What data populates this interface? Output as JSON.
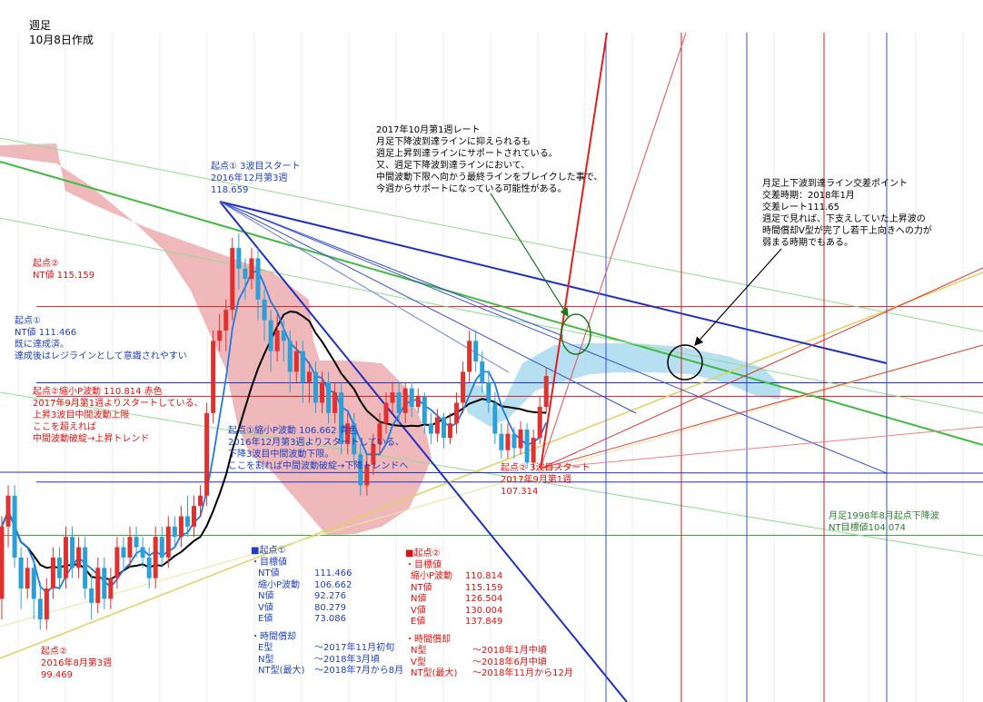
{
  "header": {
    "title": "週足",
    "subtitle": "10月8日作成"
  },
  "notes": {
    "note_2017": [
      "2017年10月第1週レート",
      "月足下降波到達ラインに抑えられるも",
      "週足上昇到達ラインにサポートされている。",
      "又、週足下降波到達ラインにおいて、",
      "中間波動下限へ向かう最終ラインをブレイクした事で、",
      "今週からサポートになっている可能性がある。"
    ],
    "note_cross": [
      "月足上下波到達ライン交差ポイント",
      "交差時期：2018年1月",
      "交差レート111.65",
      "週足で見れば、下支えしていた上昇波の",
      "時間償却V型が完了し若干上向きへの力が",
      "弱まる時期でもある。"
    ],
    "start1_top": [
      "起点①  3波目スタート",
      "2016年12月第3週",
      "118.659"
    ],
    "start2_nt": [
      "起点②",
      "NT値  115.159"
    ],
    "start1_nt": [
      "起点①",
      "NT値  111.466",
      "既に達成済。",
      "達成後はレジラインとして意識されやすい"
    ],
    "start2_small": [
      "起点②縮小P波動  110.814  赤色",
      "2017年9月第1週よりスタートしている、",
      "上昇3波目中間波動上限",
      "ここを超えれば",
      "中間波動破綻→上昇トレンド"
    ],
    "start1_small": [
      "起点①縮小P波動  106.662  青色",
      "2016年12月第3週よりスタートしている、",
      "下降3波目中間波動下限。",
      "ここを割れば中間波動破綻→下降トレンドへ"
    ],
    "start2_low": [
      "起点②  3波目スタート",
      "2017年9月第1週",
      "107.314"
    ],
    "monthly": [
      "月足1998年8月起点下降波",
      "NT目標値104.074"
    ],
    "start2_bottom": [
      "起点②",
      "2016年8月第3週",
      "99.469"
    ]
  },
  "targets1": {
    "title": "■起点①",
    "sub": "・目標値",
    "rows": [
      [
        "NT値",
        "111.466"
      ],
      [
        "縮小P波動",
        "106.662"
      ],
      [
        "N値",
        "92.276"
      ],
      [
        "V値",
        "80.279"
      ],
      [
        "E値",
        "73.086"
      ]
    ],
    "time_title": "・時間償却",
    "time_rows": [
      [
        "E型",
        "〜2017年11月初旬"
      ],
      [
        "N型",
        "〜2018年3月頃"
      ],
      [
        "NT型(最大)",
        "〜2018年7月から8月"
      ]
    ]
  },
  "targets2": {
    "title": "■起点②",
    "sub": "・目標値",
    "rows": [
      [
        "縮小P波動",
        "110.814"
      ],
      [
        "NT値",
        "115.159"
      ],
      [
        "N値",
        "126.504"
      ],
      [
        "V値",
        "130.004"
      ],
      [
        "E値",
        "137.849"
      ]
    ],
    "time_title": "・時間償却",
    "time_rows": [
      [
        "N型",
        "〜2018年1月中頃"
      ],
      [
        "V型",
        "〜2018年6月中頃"
      ],
      [
        "NT型(最大)",
        "〜2018年11月から12月"
      ]
    ]
  },
  "colors": {
    "up": "#e03030",
    "down": "#2b9fd6",
    "cloud_red": "#eba8aa",
    "cloud_blue": "#a9daf0",
    "ma_black": "#000000",
    "ma_blue": "#1e7be0",
    "level_red": "#d02020",
    "level_blue": "#2030c0",
    "level_green": "#3faa3f"
  },
  "chart_data": {
    "type": "candlestick",
    "title": "週足",
    "xlabel": "",
    "ylabel": "",
    "ylim": [
      96,
      125
    ],
    "x_start": "2016年8月",
    "key_levels": [
      {
        "label": "起点② NT値",
        "value": 115.159,
        "color": "red"
      },
      {
        "label": "起点① NT値",
        "value": 111.466,
        "color": "blue"
      },
      {
        "label": "起点② 縮小P波動",
        "value": 110.814,
        "color": "red"
      },
      {
        "label": "起点① 縮小P波動",
        "value": 106.662,
        "color": "blue"
      },
      {
        "label": "NT目標値",
        "value": 104.074,
        "color": "green"
      }
    ],
    "pivots": [
      {
        "label": "起点② 2016年8月第3週",
        "value": 99.469
      },
      {
        "label": "起点① 2016年12月第3週",
        "value": 118.659
      },
      {
        "label": "起点② 2017年9月第1週",
        "value": 107.314
      }
    ],
    "candles": [
      [
        101,
        104.5,
        100,
        105
      ],
      [
        104.5,
        106,
        103.5,
        106.5
      ],
      [
        106,
        103,
        102.5,
        106.5
      ],
      [
        103,
        101.5,
        100.5,
        103.5
      ],
      [
        101.5,
        102.5,
        101,
        103
      ],
      [
        102.5,
        101,
        100,
        103
      ],
      [
        101,
        100,
        99.5,
        101.8
      ],
      [
        100,
        101.5,
        99.5,
        102
      ],
      [
        101.5,
        103,
        101,
        103.5
      ],
      [
        103,
        102,
        101.5,
        103.5
      ],
      [
        102,
        104,
        101.5,
        104.5
      ],
      [
        104,
        102.5,
        102,
        104.5
      ],
      [
        102.5,
        103.5,
        102,
        104
      ],
      [
        103.5,
        101.5,
        101,
        104
      ],
      [
        101.5,
        100.8,
        100,
        102.2
      ],
      [
        100.8,
        102.5,
        100.3,
        103
      ],
      [
        102.5,
        101,
        100.5,
        103
      ],
      [
        101,
        102,
        100.5,
        102.5
      ],
      [
        102,
        103.5,
        101.5,
        104
      ],
      [
        103.5,
        103,
        102.5,
        104
      ],
      [
        103,
        104,
        102.5,
        104.5
      ],
      [
        104,
        103.5,
        103,
        104.5
      ],
      [
        103.5,
        103,
        102.5,
        104
      ],
      [
        103,
        102,
        101.5,
        103.5
      ],
      [
        102,
        104,
        101.5,
        104.5
      ],
      [
        104,
        103,
        102.5,
        104.5
      ],
      [
        103,
        104.5,
        102.5,
        105
      ],
      [
        104.5,
        104,
        103.5,
        105
      ],
      [
        104,
        105,
        103.5,
        105.5
      ],
      [
        105,
        104.5,
        104,
        106
      ],
      [
        104.5,
        105.5,
        104,
        106
      ],
      [
        105.5,
        106,
        105,
        106.5
      ],
      [
        106,
        110,
        105.5,
        110.5
      ],
      [
        110,
        113.5,
        109.5,
        114
      ],
      [
        113.5,
        114,
        113,
        114.8
      ],
      [
        114,
        115,
        113,
        115.5
      ],
      [
        115,
        118,
        114.5,
        118.5
      ],
      [
        118,
        117,
        116,
        118.7
      ],
      [
        117,
        116.5,
        115.5,
        117.5
      ],
      [
        116.5,
        117.5,
        116,
        118
      ],
      [
        117.5,
        115.5,
        114.5,
        118
      ],
      [
        115.5,
        114.5,
        113.5,
        116
      ],
      [
        114.5,
        113,
        112,
        115
      ],
      [
        113,
        114,
        112.5,
        114.8
      ],
      [
        114,
        113.5,
        112.5,
        114.5
      ],
      [
        113.5,
        112,
        111,
        114
      ],
      [
        112,
        113,
        111.5,
        113.5
      ],
      [
        113,
        111.5,
        110.5,
        113.5
      ],
      [
        111.5,
        112,
        110.5,
        112.5
      ],
      [
        112,
        110.5,
        110,
        112.5
      ],
      [
        110.5,
        111.5,
        110,
        112
      ],
      [
        111.5,
        110,
        109.5,
        112
      ],
      [
        110,
        111,
        109.5,
        111.5
      ],
      [
        111,
        108.5,
        108,
        111.5
      ],
      [
        108.5,
        109.5,
        108,
        110
      ],
      [
        109.5,
        108,
        107.5,
        110
      ],
      [
        108,
        106.5,
        106,
        108.5
      ],
      [
        106.5,
        107.5,
        106,
        108
      ],
      [
        107.5,
        108.5,
        107,
        109
      ],
      [
        108.5,
        109.5,
        108,
        110
      ],
      [
        109.5,
        110.5,
        109,
        111
      ],
      [
        110.5,
        111,
        110,
        111.5
      ],
      [
        111,
        110,
        109.5,
        111.5
      ],
      [
        110,
        111.2,
        109.5,
        111.5
      ],
      [
        111.2,
        110.3,
        109.8,
        111.5
      ],
      [
        110.3,
        110.8,
        110,
        111.2
      ],
      [
        110.8,
        109.5,
        109,
        111
      ],
      [
        109.5,
        109,
        108.5,
        110
      ],
      [
        109,
        109.8,
        108.6,
        110.2
      ],
      [
        109.8,
        108.8,
        108.3,
        110
      ],
      [
        108.8,
        109.5,
        108.5,
        110
      ],
      [
        109.5,
        110.5,
        109,
        111
      ],
      [
        110.5,
        112,
        110,
        112.5
      ],
      [
        112,
        113.5,
        111.5,
        114
      ],
      [
        113.5,
        112.5,
        112,
        114
      ],
      [
        112.5,
        111.5,
        111,
        113
      ],
      [
        111.5,
        110.5,
        110,
        112
      ],
      [
        110.5,
        109,
        108.5,
        111
      ],
      [
        109,
        108.2,
        107.8,
        109.5
      ],
      [
        108.2,
        109,
        107.8,
        109.5
      ],
      [
        109,
        108.3,
        107.8,
        109.3
      ],
      [
        108.3,
        109.2,
        108,
        109.6
      ],
      [
        109.2,
        107.6,
        107.3,
        109.5
      ],
      [
        107.6,
        108.8,
        107.3,
        109.2
      ],
      [
        108.8,
        110.3,
        108.5,
        110.8
      ],
      [
        110.3,
        111.8,
        110,
        112.2
      ]
    ]
  }
}
